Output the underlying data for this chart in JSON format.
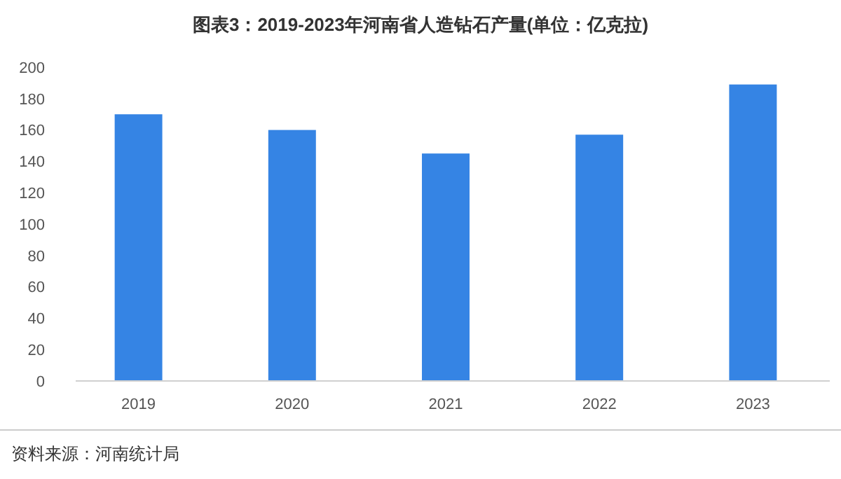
{
  "chart_data": {
    "type": "bar",
    "title": "图表3：2019-2023年河南省人造钻石产量(单位：亿克拉)",
    "categories": [
      "2019",
      "2020",
      "2021",
      "2022",
      "2023"
    ],
    "values": [
      170,
      160,
      145,
      157,
      189
    ],
    "color": "#3584e4",
    "ylim": [
      0,
      200
    ],
    "yticks": [
      0,
      20,
      40,
      60,
      80,
      100,
      120,
      140,
      160,
      180,
      200
    ],
    "grid": false,
    "annotations": [
      "资料来源：河南统计局"
    ]
  }
}
